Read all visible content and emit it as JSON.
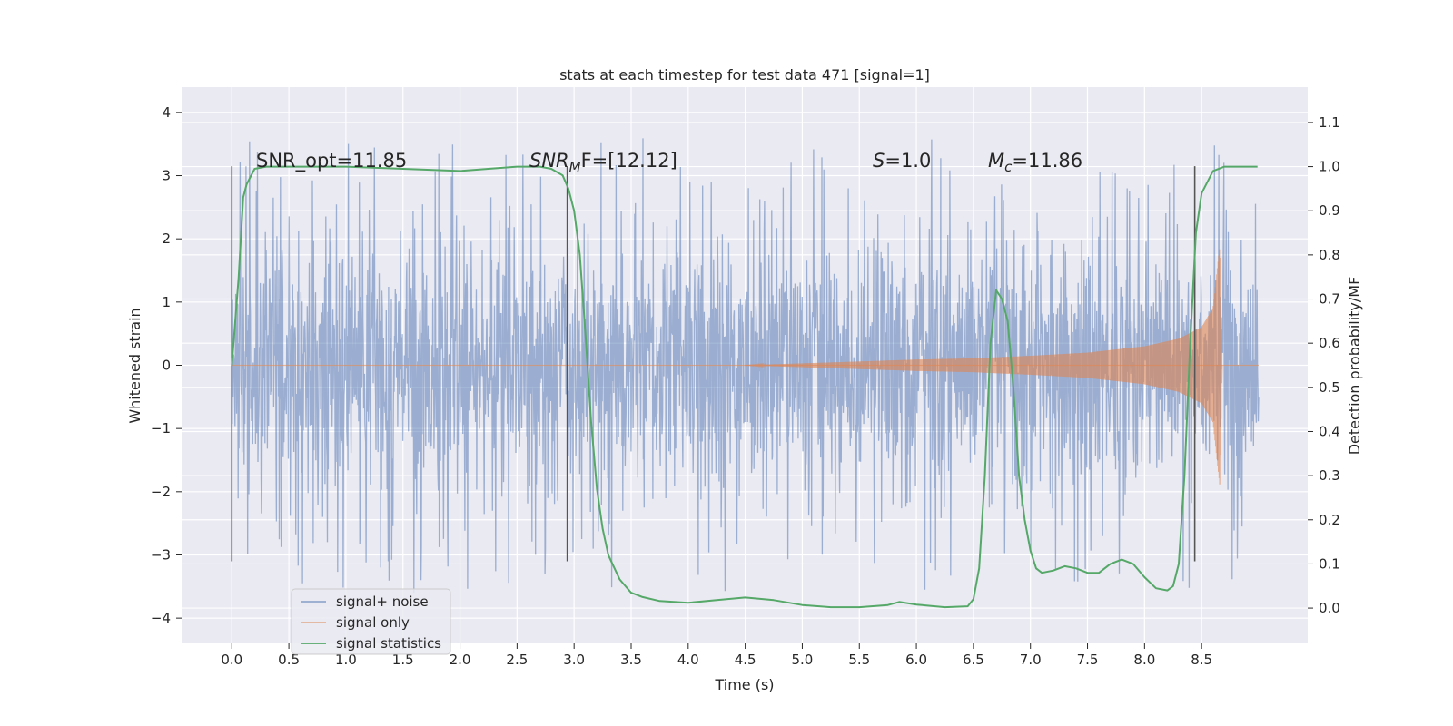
{
  "chart_data": {
    "type": "line",
    "title": "stats at each timestep for test data 471 [signal=1]",
    "xlabel": "Time (s)",
    "ylabel": "Whitened strain",
    "y2label": "Detection probability/MF",
    "xlim": [
      -0.44,
      9.43
    ],
    "ylim": [
      -4.4,
      4.4
    ],
    "y2lim": [
      -0.08,
      1.18
    ],
    "xticks": [
      0.0,
      0.5,
      1.0,
      1.5,
      2.0,
      2.5,
      3.0,
      3.5,
      4.0,
      4.5,
      5.0,
      5.5,
      6.0,
      6.5,
      7.0,
      7.5,
      8.0,
      8.5
    ],
    "xtick_labels": [
      "0.0",
      "0.5",
      "1.0",
      "1.5",
      "2.0",
      "2.5",
      "3.0",
      "3.5",
      "4.0",
      "4.5",
      "5.0",
      "5.5",
      "6.0",
      "6.5",
      "7.0",
      "7.5",
      "8.0",
      "8.5"
    ],
    "yticks": [
      -4,
      -3,
      -2,
      -1,
      0,
      1,
      2,
      3,
      4
    ],
    "ytick_labels": [
      "−4",
      "−3",
      "−2",
      "−1",
      "0",
      "1",
      "2",
      "3",
      "4"
    ],
    "y2ticks": [
      0.0,
      0.1,
      0.2,
      0.3,
      0.4,
      0.5,
      0.6,
      0.7,
      0.8,
      0.9,
      1.0,
      1.1
    ],
    "y2tick_labels": [
      "0.0",
      "0.1",
      "0.2",
      "0.3",
      "0.4",
      "0.5",
      "0.6",
      "0.7",
      "0.8",
      "0.9",
      "1.0",
      "1.1"
    ],
    "grid": true,
    "legend_placement": "lower-left",
    "legend": [
      "signal+ noise",
      "signal only",
      "signal statistics"
    ],
    "annotations": {
      "snr_opt": "SNR_opt=11.85",
      "snr_mf_main": "SNR",
      "snr_mf_sub": "M",
      "snr_mf_rest": "F=[12.12]",
      "s_main": "S",
      "s_rest": "=1.0",
      "mc_main": "M",
      "mc_sub": "c",
      "mc_rest": "=11.86"
    },
    "vertical_markers": [
      0.0,
      2.94,
      8.44
    ],
    "vertical_marker_range": [
      -3.1,
      3.15
    ],
    "series": [
      {
        "name": "signal+ noise",
        "color": "#4c72b0",
        "kind": "noise_band",
        "x_range": [
          0.0,
          9.0
        ],
        "typical_amplitude": 1.3,
        "peak_max": 3.9,
        "peak_min": -3.95
      },
      {
        "name": "signal only",
        "color": "#dd8452",
        "kind": "chirp",
        "x": [
          4.5,
          5.0,
          5.5,
          6.0,
          6.5,
          7.0,
          7.5,
          8.0,
          8.3,
          8.5,
          8.6,
          8.66,
          8.68
        ],
        "envelope": [
          0.0,
          0.03,
          0.06,
          0.09,
          0.11,
          0.15,
          0.2,
          0.3,
          0.42,
          0.6,
          0.9,
          1.9,
          0.0
        ]
      },
      {
        "name": "signal statistics",
        "color": "#55a868",
        "x": [
          0.0,
          0.06,
          0.1,
          0.13,
          0.2,
          0.3,
          0.5,
          1.0,
          1.5,
          2.0,
          2.5,
          2.7,
          2.8,
          2.9,
          2.95,
          3.0,
          3.05,
          3.1,
          3.15,
          3.2,
          3.25,
          3.3,
          3.4,
          3.5,
          3.6,
          3.75,
          4.0,
          4.25,
          4.5,
          4.75,
          5.0,
          5.25,
          5.5,
          5.75,
          5.85,
          6.0,
          6.25,
          6.45,
          6.5,
          6.55,
          6.6,
          6.65,
          6.7,
          6.75,
          6.8,
          6.85,
          6.9,
          6.95,
          7.0,
          7.05,
          7.1,
          7.2,
          7.3,
          7.4,
          7.5,
          7.6,
          7.7,
          7.8,
          7.9,
          8.0,
          8.1,
          8.2,
          8.25,
          8.3,
          8.35,
          8.4,
          8.45,
          8.5,
          8.6,
          8.7,
          8.8,
          8.99
        ],
        "values": [
          0.55,
          0.75,
          0.93,
          0.96,
          0.995,
          1.0,
          1.0,
          1.0,
          0.995,
          0.99,
          1.0,
          1.0,
          0.995,
          0.98,
          0.95,
          0.9,
          0.8,
          0.62,
          0.42,
          0.27,
          0.18,
          0.12,
          0.065,
          0.035,
          0.025,
          0.016,
          0.012,
          0.018,
          0.024,
          0.018,
          0.007,
          0.002,
          0.002,
          0.007,
          0.014,
          0.008,
          0.002,
          0.004,
          0.02,
          0.09,
          0.3,
          0.6,
          0.72,
          0.7,
          0.65,
          0.5,
          0.3,
          0.2,
          0.13,
          0.09,
          0.08,
          0.085,
          0.095,
          0.09,
          0.08,
          0.08,
          0.1,
          0.11,
          0.1,
          0.07,
          0.045,
          0.04,
          0.05,
          0.1,
          0.3,
          0.6,
          0.85,
          0.94,
          0.99,
          1.0,
          1.0,
          1.0
        ]
      }
    ]
  }
}
